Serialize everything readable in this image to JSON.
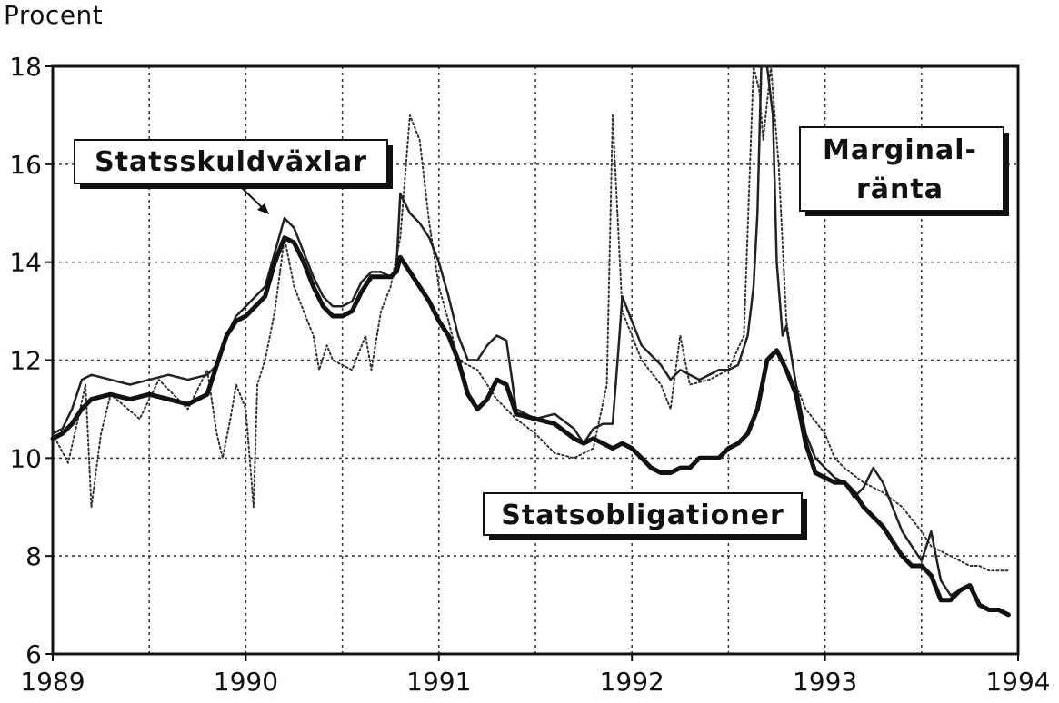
{
  "chart_data": {
    "type": "line",
    "ylabel": "Procent",
    "ylim": [
      6,
      18
    ],
    "yticks": [
      "6",
      "8",
      "10",
      "12",
      "14",
      "16",
      "18"
    ],
    "xlim": [
      1989,
      1994
    ],
    "xticks": [
      "1989",
      "1990",
      "1991",
      "1992",
      "1993",
      "1994"
    ],
    "grid": true,
    "annotations": {
      "statsskuld": "Statsskuldväxlar",
      "marginal_line1": "Marginal-",
      "marginal_line2": "ränta",
      "statsoblig": "Statsobligationer"
    },
    "series": [
      {
        "name": "Marginalränta",
        "style": "dotted",
        "color": "#333333",
        "x": [
          1989.0,
          1989.08,
          1989.17,
          1989.2,
          1989.25,
          1989.3,
          1989.45,
          1989.55,
          1989.7,
          1989.8,
          1989.85,
          1989.88,
          1989.92,
          1989.95,
          1989.98,
          1990.0,
          1990.04,
          1990.06,
          1990.1,
          1990.15,
          1990.2,
          1990.25,
          1990.3,
          1990.35,
          1990.38,
          1990.42,
          1990.45,
          1990.55,
          1990.62,
          1990.65,
          1990.7,
          1990.75,
          1990.8,
          1990.85,
          1990.9,
          1990.95,
          1991.0,
          1991.05,
          1991.1,
          1991.2,
          1991.3,
          1991.35,
          1991.4,
          1991.5,
          1991.6,
          1991.7,
          1991.8,
          1991.87,
          1991.9,
          1991.95,
          1992.0,
          1992.05,
          1992.15,
          1992.2,
          1992.25,
          1992.3,
          1992.4,
          1992.5,
          1992.58,
          1992.63,
          1992.66,
          1992.68,
          1992.72,
          1992.76,
          1992.8,
          1992.85,
          1992.9,
          1993.0,
          1993.05,
          1993.1,
          1993.2,
          1993.3,
          1993.4,
          1993.5,
          1993.55,
          1993.65,
          1993.75,
          1993.8,
          1993.85,
          1993.9,
          1993.95
        ],
        "y": [
          10.5,
          9.9,
          11.5,
          9.0,
          10.5,
          11.3,
          10.8,
          11.6,
          11.0,
          11.8,
          10.5,
          10.0,
          10.8,
          11.5,
          11.2,
          11.0,
          9.0,
          11.5,
          12.0,
          13.0,
          14.5,
          13.5,
          13.0,
          12.5,
          11.8,
          12.3,
          12.0,
          11.8,
          12.5,
          11.8,
          13.0,
          13.5,
          14.5,
          17.0,
          16.5,
          14.8,
          13.5,
          12.8,
          12.0,
          11.8,
          11.2,
          11.0,
          10.8,
          10.5,
          10.1,
          10.0,
          10.2,
          11.5,
          17.0,
          13.0,
          12.5,
          12.0,
          11.5,
          11.0,
          12.5,
          11.5,
          11.6,
          11.8,
          12.5,
          18.0,
          17.5,
          16.5,
          18.0,
          16.0,
          12.8,
          11.5,
          11.0,
          10.5,
          10.0,
          9.8,
          9.5,
          9.3,
          9.0,
          8.5,
          8.2,
          8.0,
          7.8,
          7.8,
          7.7,
          7.7,
          7.7
        ]
      },
      {
        "name": "Statsskuldväxlar",
        "style": "solid",
        "color": "#222222",
        "x": [
          1989.0,
          1989.05,
          1989.1,
          1989.15,
          1989.2,
          1989.3,
          1989.4,
          1989.5,
          1989.6,
          1989.7,
          1989.8,
          1989.85,
          1989.9,
          1989.95,
          1990.0,
          1990.05,
          1990.1,
          1990.15,
          1990.2,
          1990.25,
          1990.3,
          1990.35,
          1990.4,
          1990.45,
          1990.5,
          1990.55,
          1990.6,
          1990.65,
          1990.7,
          1990.75,
          1990.78,
          1990.8,
          1990.85,
          1990.9,
          1990.95,
          1991.0,
          1991.05,
          1991.1,
          1991.15,
          1991.2,
          1991.25,
          1991.3,
          1991.35,
          1991.4,
          1991.5,
          1991.6,
          1991.7,
          1991.75,
          1991.8,
          1991.85,
          1991.9,
          1991.93,
          1991.95,
          1992.0,
          1992.05,
          1992.1,
          1992.15,
          1992.2,
          1992.25,
          1992.3,
          1992.35,
          1992.4,
          1992.45,
          1992.5,
          1992.55,
          1992.6,
          1992.63,
          1992.65,
          1992.67,
          1992.7,
          1992.73,
          1992.75,
          1992.78,
          1992.8,
          1992.85,
          1992.9,
          1992.95,
          1993.0,
          1993.05,
          1993.1,
          1993.15,
          1993.2,
          1993.25,
          1993.3,
          1993.35,
          1993.4,
          1993.45,
          1993.5,
          1993.55,
          1993.6,
          1993.65,
          1993.7,
          1993.75,
          1993.8,
          1993.85,
          1993.9,
          1993.95
        ],
        "y": [
          10.5,
          10.6,
          11.0,
          11.6,
          11.7,
          11.6,
          11.5,
          11.6,
          11.7,
          11.6,
          11.7,
          11.9,
          12.5,
          12.9,
          13.1,
          13.3,
          13.5,
          14.2,
          14.9,
          14.7,
          14.2,
          13.7,
          13.3,
          13.1,
          13.1,
          13.2,
          13.6,
          13.8,
          13.8,
          13.7,
          13.9,
          15.4,
          15.0,
          14.8,
          14.5,
          14.0,
          13.3,
          12.5,
          12.0,
          12.0,
          12.3,
          12.5,
          12.4,
          11.0,
          10.8,
          10.9,
          10.6,
          10.3,
          10.6,
          10.7,
          10.7,
          12.2,
          13.3,
          12.8,
          12.3,
          12.1,
          11.9,
          11.6,
          11.8,
          11.7,
          11.6,
          11.7,
          11.8,
          11.8,
          11.9,
          12.5,
          13.5,
          15.0,
          18.0,
          18.0,
          17.0,
          14.0,
          12.5,
          12.7,
          11.5,
          10.5,
          10.0,
          9.8,
          9.6,
          9.5,
          9.2,
          9.4,
          9.8,
          9.5,
          9.0,
          8.5,
          8.2,
          7.9,
          8.5,
          7.5,
          7.2,
          7.3,
          7.4,
          7.0,
          6.9,
          6.9,
          6.8
        ]
      },
      {
        "name": "Statsobligationer",
        "style": "solid-thick",
        "color": "#111111",
        "x": [
          1989.0,
          1989.05,
          1989.1,
          1989.15,
          1989.2,
          1989.3,
          1989.4,
          1989.5,
          1989.6,
          1989.7,
          1989.8,
          1989.85,
          1989.9,
          1989.95,
          1990.0,
          1990.05,
          1990.1,
          1990.15,
          1990.2,
          1990.25,
          1990.3,
          1990.35,
          1990.4,
          1990.45,
          1990.5,
          1990.55,
          1990.6,
          1990.65,
          1990.7,
          1990.75,
          1990.78,
          1990.8,
          1990.85,
          1990.9,
          1990.95,
          1991.0,
          1991.05,
          1991.1,
          1991.15,
          1991.2,
          1991.25,
          1991.3,
          1991.35,
          1991.4,
          1991.5,
          1991.6,
          1991.7,
          1991.75,
          1991.8,
          1991.85,
          1991.9,
          1991.95,
          1992.0,
          1992.05,
          1992.1,
          1992.15,
          1992.2,
          1992.25,
          1992.3,
          1992.35,
          1992.4,
          1992.45,
          1992.5,
          1992.55,
          1992.6,
          1992.65,
          1992.7,
          1992.75,
          1992.8,
          1992.85,
          1992.9,
          1992.95,
          1993.0,
          1993.05,
          1993.1,
          1993.15,
          1993.2,
          1993.25,
          1993.3,
          1993.35,
          1993.4,
          1993.45,
          1993.5,
          1993.55,
          1993.6,
          1993.65,
          1993.7,
          1993.75,
          1993.8,
          1993.85,
          1993.9,
          1993.95
        ],
        "y": [
          10.4,
          10.5,
          10.7,
          11.0,
          11.2,
          11.3,
          11.2,
          11.3,
          11.2,
          11.1,
          11.3,
          11.9,
          12.5,
          12.8,
          12.9,
          13.1,
          13.3,
          14.0,
          14.5,
          14.4,
          14.0,
          13.5,
          13.1,
          12.9,
          12.9,
          13.0,
          13.4,
          13.7,
          13.7,
          13.7,
          13.8,
          14.1,
          13.8,
          13.5,
          13.2,
          12.8,
          12.5,
          12.0,
          11.3,
          11.0,
          11.2,
          11.6,
          11.5,
          10.9,
          10.8,
          10.7,
          10.4,
          10.3,
          10.4,
          10.3,
          10.2,
          10.3,
          10.2,
          10.0,
          9.8,
          9.7,
          9.7,
          9.8,
          9.8,
          10.0,
          10.0,
          10.0,
          10.2,
          10.3,
          10.5,
          11.0,
          12.0,
          12.2,
          11.8,
          11.3,
          10.3,
          9.7,
          9.6,
          9.5,
          9.5,
          9.3,
          9.0,
          8.8,
          8.6,
          8.3,
          8.0,
          7.8,
          7.8,
          7.6,
          7.1,
          7.1,
          7.3,
          7.4,
          7.0,
          6.9,
          6.9,
          6.8
        ]
      }
    ]
  }
}
